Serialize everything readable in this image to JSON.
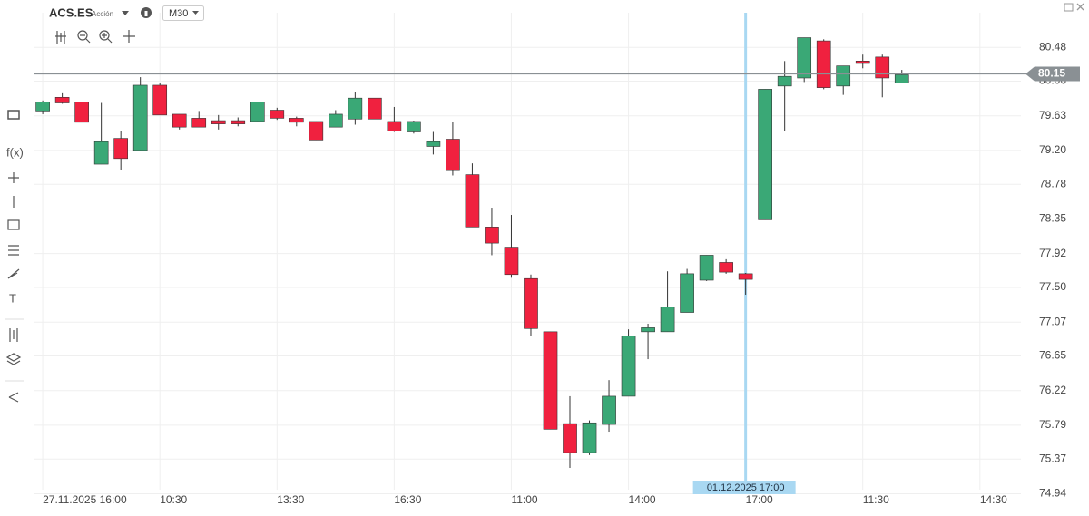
{
  "header": {
    "symbol": "ACS.ES",
    "instrument_type": "Acción",
    "timeframe": "M30"
  },
  "toolbar": {
    "functions": "f(x)",
    "text_tool": "T"
  },
  "chart_data": {
    "type": "candlestick",
    "up_color": "#3aa876",
    "down_color": "#f0213f",
    "open": [
      79.69,
      79.86,
      79.8,
      79.03,
      79.35,
      79.2,
      80.01,
      79.65,
      79.6,
      79.57,
      79.57,
      79.56,
      79.7,
      79.6,
      79.56,
      79.49,
      79.59,
      79.85,
      79.56,
      79.43,
      79.25,
      79.34,
      78.9,
      78.25,
      78.0,
      77.61,
      76.95,
      75.81,
      75.45,
      75.8,
      76.15,
      76.95,
      76.95,
      77.19,
      77.59,
      77.81,
      77.67,
      78.34,
      80.0,
      80.1,
      80.56,
      80.0,
      80.31,
      80.36,
      80.04
    ],
    "high": [
      79.82,
      79.91,
      79.8,
      79.79,
      79.44,
      80.11,
      80.04,
      79.65,
      79.69,
      79.64,
      79.61,
      79.8,
      79.73,
      79.62,
      79.56,
      79.7,
      79.92,
      79.85,
      79.74,
      79.57,
      79.43,
      79.55,
      79.04,
      78.49,
      78.4,
      77.66,
      76.95,
      76.15,
      75.85,
      76.35,
      76.98,
      77.05,
      77.7,
      77.73,
      77.9,
      77.85,
      77.68,
      79.96,
      80.31,
      80.6,
      80.58,
      80.25,
      80.39,
      80.39,
      80.2
    ],
    "low": [
      79.65,
      79.78,
      79.55,
      79.03,
      78.96,
      79.2,
      79.64,
      79.46,
      79.49,
      79.46,
      79.5,
      79.56,
      79.58,
      79.5,
      79.33,
      79.49,
      79.52,
      79.59,
      79.43,
      79.41,
      79.15,
      78.89,
      78.25,
      77.9,
      77.62,
      76.9,
      75.74,
      75.26,
      75.42,
      75.71,
      76.15,
      76.61,
      76.95,
      77.19,
      77.58,
      77.67,
      77.41,
      78.34,
      79.44,
      80.05,
      79.96,
      79.89,
      80.22,
      79.86,
      80.04
    ],
    "close": [
      79.8,
      79.79,
      79.55,
      79.31,
      79.1,
      80.01,
      79.64,
      79.49,
      79.49,
      79.53,
      79.53,
      79.8,
      79.6,
      79.55,
      79.33,
      79.65,
      79.85,
      79.59,
      79.44,
      79.56,
      79.31,
      78.95,
      78.25,
      78.05,
      77.66,
      76.99,
      75.74,
      75.45,
      75.82,
      76.15,
      76.9,
      77.0,
      77.26,
      77.67,
      77.9,
      77.69,
      77.6,
      79.96,
      80.12,
      80.6,
      79.98,
      80.25,
      80.28,
      80.1,
      80.14
    ],
    "xlim": [
      -0.47,
      50.1
    ],
    "xticks": [
      {
        "value": 0,
        "label": "27.11.2025 16:00"
      },
      {
        "value": 6,
        "label": "10:30"
      },
      {
        "value": 12,
        "label": "13:30"
      },
      {
        "value": 18,
        "label": "16:30"
      },
      {
        "value": 24,
        "label": "11:00"
      },
      {
        "value": 30,
        "label": "14:00"
      },
      {
        "value": 36,
        "label": "17:00"
      },
      {
        "value": 42,
        "label": "11:30"
      },
      {
        "value": 48,
        "label": "14:30"
      }
    ],
    "ylim": [
      74.9,
      80.91
    ],
    "yticks": [
      80.48,
      80.06,
      79.63,
      {
        "value": 79.2,
        "label": "79.20"
      },
      78.78,
      78.35,
      77.92,
      {
        "value": 77.5,
        "label": "77.50"
      },
      77.07,
      76.65,
      76.22,
      75.79,
      75.37,
      74.94
    ],
    "grid": true,
    "current_price": 80.15,
    "crosshair_label": "01.12.2025 17:00"
  }
}
